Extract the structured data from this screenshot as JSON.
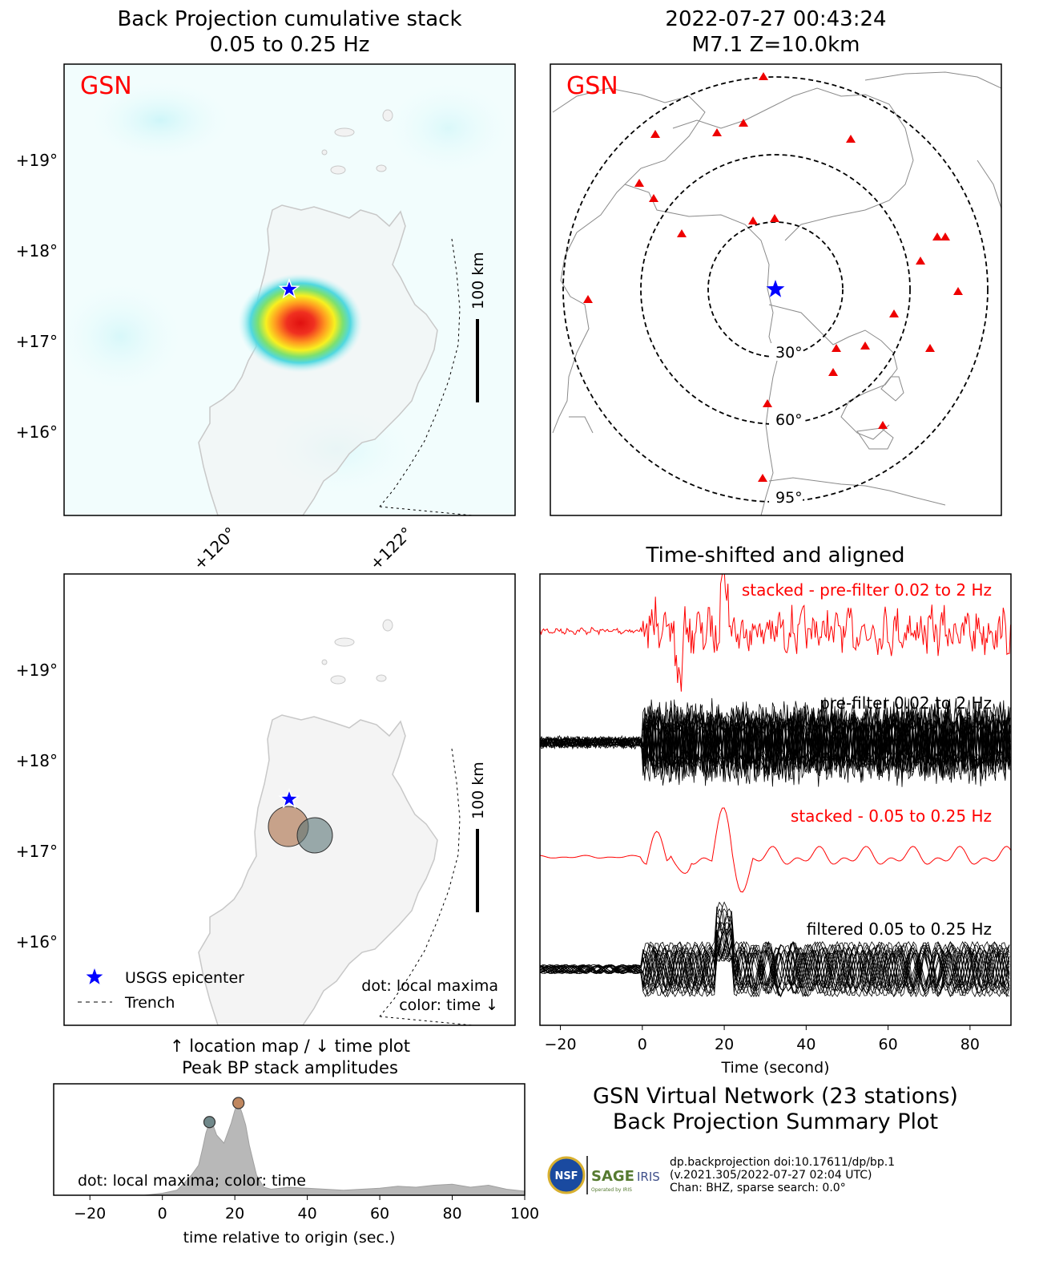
{
  "colors": {
    "red": "#ff0000",
    "blue": "#0000ff",
    "land": "#f2f2f2",
    "coast": "#c8c8c8",
    "orange": "#c0875f",
    "teal": "#70888a"
  },
  "bp_panel": {
    "title_line1": "Back Projection cumulative stack",
    "title_line2": "0.05 to 0.25 Hz",
    "network_label": "GSN",
    "lat_ticks": [
      "+19°",
      "+18°",
      "+17°",
      "+16°"
    ],
    "lon_ticks": [
      "+120°",
      "+122°"
    ],
    "scale_label": "100 km"
  },
  "station_panel": {
    "title_line1": "2022-07-27 00:43:24",
    "title_line2": "M7.1 Z=10.0km",
    "network_label": "GSN",
    "distance_labels": [
      "30°",
      "60°",
      "95°"
    ]
  },
  "location_panel": {
    "lat_ticks": [
      "+19°",
      "+18°",
      "+17°",
      "+16°"
    ],
    "scale_label": "100 km",
    "legend": {
      "epicenter": "USGS epicenter",
      "trench": "Trench"
    },
    "note_line1": "dot: local maxima",
    "note_line2": "color: time ↓",
    "caption_line1": "↑ location map / ↓ time plot",
    "caption_line2": "Peak BP stack amplitudes"
  },
  "waveform_panel": {
    "title": "Time-shifted and aligned",
    "traces": [
      {
        "label": "stacked - pre-filter 0.02 to 2 Hz",
        "color": "#ff0000"
      },
      {
        "label": "pre-filter 0.02 to 2 Hz",
        "color": "#000000"
      },
      {
        "label": "stacked - 0.05 to 0.25 Hz",
        "color": "#ff0000"
      },
      {
        "label": "filtered 0.05 to 0.25 Hz",
        "color": "#000000"
      }
    ],
    "x_ticks": [
      "−20",
      "0",
      "20",
      "40",
      "60",
      "80"
    ],
    "xlabel": "Time (second)"
  },
  "time_panel": {
    "note": "dot: local maxima; color: time",
    "x_ticks": [
      "−20",
      "0",
      "20",
      "40",
      "60",
      "80",
      "100"
    ],
    "xlabel": "time relative to origin (sec.)"
  },
  "summary": {
    "line1": "GSN Virtual Network (23 stations)",
    "line2": "Back Projection Summary Plot",
    "meta_line1": "dp.backprojection doi:10.17611/dp/bp.1",
    "meta_line2": "(v.2021.305/2022-07-27 02:04 UTC)",
    "meta_line3": "Chan: BHZ, sparse search: 0.0°",
    "logo_nsf": "NSF",
    "logo_sage": "SAGE",
    "logo_iris": "IRIS",
    "logo_sub": "Operated by IRIS"
  },
  "chart_data": [
    {
      "type": "heatmap",
      "title": "Back Projection cumulative stack 0.05 to 0.25 Hz",
      "peak": {
        "lon": 120.7,
        "lat": 17.3
      },
      "epicenter": {
        "lon": 120.5,
        "lat": 17.55
      },
      "lat_ticks": [
        19,
        18,
        17,
        16
      ],
      "lon_ticks": [
        120,
        122
      ]
    },
    {
      "type": "scatter",
      "title": "Peak BP stack amplitudes",
      "xlabel": "time relative to origin (sec.)",
      "xlim": [
        -30,
        100
      ],
      "local_maxima": [
        {
          "time": 13,
          "amp": 0.73
        },
        {
          "time": 21,
          "amp": 0.92
        }
      ],
      "envelope": {
        "x": [
          -30,
          -20,
          -5,
          0,
          4,
          6,
          8,
          10,
          11,
          12,
          13,
          14,
          15,
          17,
          19,
          20,
          21,
          22,
          23,
          24,
          26,
          28,
          30,
          35,
          40,
          50,
          60,
          65,
          70,
          75,
          80,
          85,
          90,
          95,
          100
        ],
        "y": [
          0,
          0,
          0,
          0.02,
          0.05,
          0.12,
          0.2,
          0.3,
          0.45,
          0.62,
          0.73,
          0.7,
          0.6,
          0.52,
          0.72,
          0.85,
          0.92,
          0.82,
          0.7,
          0.5,
          0.2,
          0.08,
          0.06,
          0.08,
          0.07,
          0.05,
          0.07,
          0.09,
          0.08,
          0.1,
          0.11,
          0.08,
          0.1,
          0.06,
          0.04
        ]
      }
    },
    {
      "type": "line",
      "title": "Time-shifted and aligned",
      "xlabel": "Time (second)",
      "xlim": [
        -25,
        90
      ],
      "series": [
        {
          "name": "stacked - pre-filter 0.02 to 2 Hz"
        },
        {
          "name": "pre-filter 0.02 to 2 Hz"
        },
        {
          "name": "stacked - 0.05 to 0.25 Hz"
        },
        {
          "name": "filtered 0.05 to 0.25 Hz"
        }
      ]
    }
  ]
}
